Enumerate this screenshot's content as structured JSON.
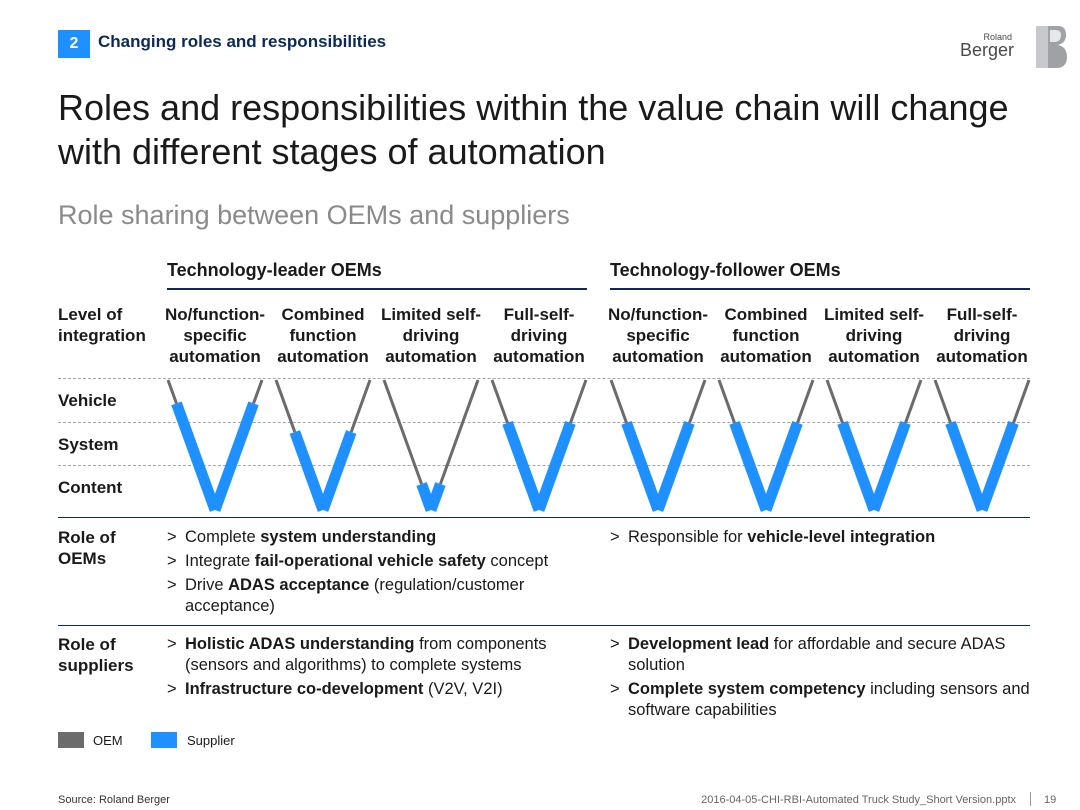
{
  "header": {
    "section_number": "2",
    "section_title": "Changing roles and responsibilities",
    "logo_top": "Roland",
    "logo_bottom": "Berger"
  },
  "title": "Roles and responsibilities within the value chain will change with different stages of automation",
  "subtitle": "Role sharing between OEMs and suppliers",
  "groups": [
    {
      "label": "Technology-leader OEMs"
    },
    {
      "label": "Technology-follower OEMs"
    }
  ],
  "row_labels": {
    "level_of_integration": [
      "Level of",
      "integration"
    ],
    "vehicle": "Vehicle",
    "system": "System",
    "content": "Content",
    "role_oems": [
      "Role of",
      "OEMs"
    ],
    "role_suppliers": [
      "Role of",
      "suppliers"
    ]
  },
  "columns": [
    {
      "lines": [
        "No/function-",
        "specific",
        "automation"
      ],
      "oem_depth": 0.18,
      "supplier_depth": 0.82
    },
    {
      "lines": [
        "Combined",
        "function",
        "automation"
      ],
      "oem_depth": 0.4,
      "supplier_depth": 0.6
    },
    {
      "lines": [
        "Limited self-",
        "driving",
        "automation"
      ],
      "oem_depth": 0.8,
      "supplier_depth": 0.2
    },
    {
      "lines": [
        "Full-self-",
        "driving",
        "automation"
      ],
      "oem_depth": 0.33,
      "supplier_depth": 0.67
    },
    {
      "lines": [
        "No/function-",
        "specific",
        "automation"
      ],
      "oem_depth": 0.33,
      "supplier_depth": 0.67
    },
    {
      "lines": [
        "Combined",
        "function",
        "automation"
      ],
      "oem_depth": 0.33,
      "supplier_depth": 0.67
    },
    {
      "lines": [
        "Limited self-",
        "driving",
        "automation"
      ],
      "oem_depth": 0.33,
      "supplier_depth": 0.67
    },
    {
      "lines": [
        "Full-self-",
        "driving",
        "automation"
      ],
      "oem_depth": 0.33,
      "supplier_depth": 0.67
    }
  ],
  "role_oems": {
    "leader": [
      {
        "pre": "Complete ",
        "bold": "system understanding",
        "post": ""
      },
      {
        "pre": "Integrate ",
        "bold": "fail-operational vehicle safety",
        "post": " concept"
      },
      {
        "pre": "Drive ",
        "bold": "ADAS acceptance",
        "post": " (regulation/customer acceptance)"
      }
    ],
    "follower": [
      {
        "pre": "Responsible for ",
        "bold": "vehicle-level integration",
        "post": ""
      }
    ]
  },
  "role_suppliers": {
    "leader": [
      {
        "pre": "",
        "bold": "Holistic ADAS understanding",
        "post": " from components (sensors and algorithms) to complete systems"
      },
      {
        "pre": "",
        "bold": "Infrastructure co-development",
        "post": " (V2V, V2I)"
      }
    ],
    "follower": [
      {
        "pre": "",
        "bold": "Development lead",
        "post": " for affordable and secure ADAS solution"
      },
      {
        "pre": "",
        "bold": "Complete system competency",
        "post": " including sensors and software capabilities"
      }
    ]
  },
  "bullet_marker": ">",
  "legend": [
    {
      "label": "OEM",
      "color": "#6b6b6b"
    },
    {
      "label": "Supplier",
      "color": "#1e90ff"
    }
  ],
  "colors": {
    "oem": "#6b6b6b",
    "supplier": "#1e90ff",
    "accent": "#1e90ff",
    "navy": "#0b2a5b"
  },
  "footer": {
    "source": "Source: Roland Berger",
    "filename": "2016-04-05-CHI-RBI-Automated Truck Study_Short Version.pptx",
    "page": "19"
  }
}
